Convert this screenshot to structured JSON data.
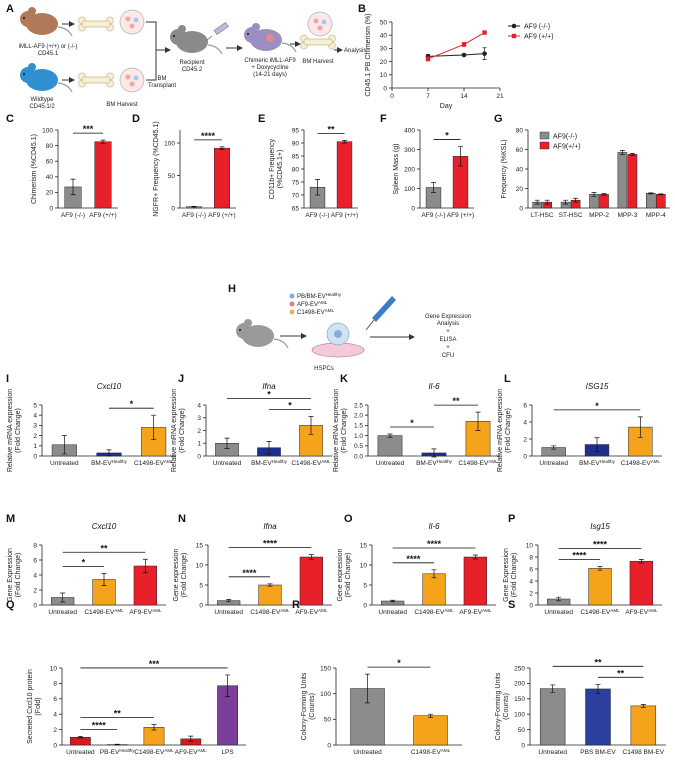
{
  "schematic_A": {
    "panel": "A",
    "donor": "iMLL-AF9 (+/+) or (-/-)",
    "donor_marker": "CD45.1",
    "wildtype": "Wildtype",
    "wildtype_marker": "CD45.1/2",
    "harvest_1": "BM Harvest",
    "transplant": [
      "BM",
      "Transplant"
    ],
    "recipient": [
      "Recipient",
      "CD45.2"
    ],
    "chimeric": [
      "Chimeric iMLL-AF9",
      "+ Doxycycline",
      "(14-21 days)"
    ],
    "harvest_2": "BM Harvest",
    "analysis": "Analysis"
  },
  "schematic_H": {
    "panel": "H",
    "ev_sources": [
      {
        "name": "PB/BM-EV",
        "sup": "Healthy"
      },
      {
        "name": "AF9-EV",
        "sup": "AML"
      },
      {
        "name": "C1498-EV",
        "sup": "AML"
      }
    ],
    "cells": "HSPCs",
    "readouts": [
      "Gene Expression",
      "Analysis",
      "+",
      "ELISA",
      "+",
      "CFU"
    ]
  },
  "chart_data": [
    {
      "panel": "B",
      "type": "line",
      "xlabel": "Day",
      "ylabel": "CD45.1 PB Chimerism (%)",
      "xlim": [
        0,
        21
      ],
      "xticks": [
        0,
        7,
        14,
        21
      ],
      "ylim": [
        0,
        50
      ],
      "yticks": [
        0,
        10,
        20,
        30,
        40,
        50
      ],
      "series": [
        {
          "name": "AF9 (-/-)",
          "color": "#222222",
          "marker": "circle",
          "x": [
            7,
            14,
            18
          ],
          "values": [
            24,
            25,
            26
          ],
          "errors": [
            1.5,
            0.8,
            4.5
          ]
        },
        {
          "name": "AF9 (+/+)",
          "color": "#e8202a",
          "marker": "square",
          "x": [
            7,
            14,
            18
          ],
          "values": [
            22,
            33,
            42
          ],
          "errors": [
            1.5,
            1.5,
            1
          ]
        }
      ]
    },
    {
      "panel": "C",
      "type": "bar",
      "ylabel": "Chimerism (%CD45.1)",
      "categories": [
        "AF9 (-/-)",
        "AF9 (+/+)"
      ],
      "values": [
        27,
        85
      ],
      "errors": [
        10,
        2
      ],
      "colors": [
        "#8c8c8c",
        "#e8202a"
      ],
      "ylim": [
        0,
        100
      ],
      "yticks": [
        0,
        20,
        40,
        60,
        80,
        100
      ],
      "significance": [
        {
          "label": "***",
          "between": [
            "AF9 (-/-)",
            "AF9 (+/+)"
          ]
        }
      ]
    },
    {
      "panel": "D",
      "type": "bar",
      "ylabel": "NGFR+ Frequency (%CD45.1)",
      "categories": [
        "AF9 (-/-)",
        "AF9 (+/+)"
      ],
      "values": [
        2,
        92
      ],
      "errors": [
        0.5,
        2
      ],
      "colors": [
        "#8c8c8c",
        "#e8202a"
      ],
      "ylim": [
        0,
        120
      ],
      "yticks": [
        0,
        50,
        100
      ],
      "significance": [
        {
          "label": "****",
          "between": [
            "AF9 (-/-)",
            "AF9 (+/+)"
          ]
        }
      ]
    },
    {
      "panel": "E",
      "type": "bar",
      "ylabel": [
        "CD11b+ Frequency",
        "(%CD45.1+)"
      ],
      "categories": [
        "AF9 (-/-)",
        "AF9 (+/+)"
      ],
      "values": [
        73,
        90.5
      ],
      "errors": [
        3,
        0.5
      ],
      "colors": [
        "#8c8c8c",
        "#e8202a"
      ],
      "ylim": [
        65,
        95
      ],
      "yticks": [
        65,
        70,
        75,
        80,
        85,
        90,
        95
      ],
      "significance": [
        {
          "label": "**",
          "between": [
            "AF9 (-/-)",
            "AF9 (+/+)"
          ]
        }
      ]
    },
    {
      "panel": "F",
      "type": "bar",
      "ylabel": "Spleen Mass (g)",
      "categories": [
        "AF9 (-/-)",
        "AF9 (+/+)"
      ],
      "values": [
        105,
        265
      ],
      "errors": [
        25,
        50
      ],
      "colors": [
        "#8c8c8c",
        "#e8202a"
      ],
      "ylim": [
        0,
        400
      ],
      "yticks": [
        0,
        100,
        200,
        300,
        400
      ],
      "significance": [
        {
          "label": "*",
          "between": [
            "AF9 (-/-)",
            "AF9 (+/+)"
          ]
        }
      ]
    },
    {
      "panel": "G",
      "type": "grouped_bar",
      "ylabel": "Frequency (%KSL)",
      "categories": [
        "LT-HSC",
        "ST-HSC",
        "MPP-2",
        "MPP-3",
        "MPP-4"
      ],
      "ylim": [
        0,
        80
      ],
      "yticks": [
        0,
        20,
        40,
        60,
        80
      ],
      "series": [
        {
          "name": "AF9(-/-)",
          "color": "#8c8c8c",
          "values": [
            6,
            6,
            14,
            57,
            15
          ],
          "errors": [
            2,
            2,
            2,
            2,
            0.5
          ]
        },
        {
          "name": "AF9(+/+)",
          "color": "#e8202a",
          "values": [
            6,
            8,
            14,
            55,
            14
          ],
          "errors": [
            2,
            2,
            1,
            1,
            0.5
          ]
        }
      ]
    },
    {
      "panel": "I",
      "type": "bar",
      "title": "Cxcl10",
      "ylabel": [
        "Relative mRNA expression",
        "(Fold Change)"
      ],
      "categories": [
        "Untreated",
        "BM-EV",
        "C1498-EV"
      ],
      "category_superscripts": [
        null,
        "Healthy",
        "AML"
      ],
      "values": [
        1.1,
        0.3,
        2.8
      ],
      "errors": [
        0.9,
        0.3,
        1.2
      ],
      "colors": [
        "#8c8c8c",
        "#1f2f8f",
        "#f5a31a"
      ],
      "ylim": [
        0,
        5
      ],
      "yticks": [
        0,
        1,
        2,
        3,
        4,
        5
      ],
      "significance": [
        {
          "label": "*",
          "between": [
            "BM-EV",
            "C1498-EV"
          ]
        }
      ]
    },
    {
      "panel": "J",
      "type": "bar",
      "title": "Ifna",
      "ylabel": [
        "Relative mRNA expression",
        "(Fold Change)"
      ],
      "categories": [
        "Untreated",
        "BM-EV",
        "C1498-EV"
      ],
      "category_superscripts": [
        null,
        "Healthy",
        "AML"
      ],
      "values": [
        1.0,
        0.65,
        2.4
      ],
      "errors": [
        0.4,
        0.5,
        0.7
      ],
      "colors": [
        "#8c8c8c",
        "#1f2f8f",
        "#f5a31a"
      ],
      "ylim": [
        0,
        4
      ],
      "yticks": [
        0,
        1,
        2,
        3,
        4
      ],
      "significance": [
        {
          "label": "*",
          "between": [
            "BM-EV",
            "C1498-EV"
          ]
        },
        {
          "label": "*",
          "between": [
            "Untreated",
            "C1498-EV"
          ]
        }
      ]
    },
    {
      "panel": "K",
      "type": "bar",
      "title": "Il-6",
      "ylabel": [
        "Relative mRNA expression",
        "(Fold Change)"
      ],
      "categories": [
        "Untreated",
        "BM-EV",
        "C1498-EV"
      ],
      "category_superscripts": [
        null,
        "Healthy",
        "AML"
      ],
      "values": [
        1.0,
        0.15,
        1.7
      ],
      "errors": [
        0.08,
        0.2,
        0.45
      ],
      "colors": [
        "#8c8c8c",
        "#1f2f8f",
        "#f5a31a"
      ],
      "ylim": [
        0,
        2.5
      ],
      "yticks": [
        {
          "value": 0,
          "label": "0.0"
        },
        0.5,
        {
          "value": 1,
          "label": "1.0"
        },
        1.5,
        {
          "value": 2,
          "label": "2.0"
        },
        2.5
      ],
      "significance": [
        {
          "label": "*",
          "between": [
            "Untreated",
            "BM-EV"
          ]
        },
        {
          "label": "**",
          "between": [
            "BM-EV",
            "C1498-EV"
          ]
        }
      ]
    },
    {
      "panel": "L",
      "type": "bar",
      "title": "ISG15",
      "ylabel": [
        "Relative mRNA expression",
        "(Fold Change)"
      ],
      "categories": [
        "Untreated",
        "BM-EV",
        "C1498-EV"
      ],
      "category_superscripts": [
        null,
        "Healthy",
        "AML"
      ],
      "values": [
        1.0,
        1.35,
        3.4
      ],
      "errors": [
        0.2,
        0.8,
        1.2
      ],
      "colors": [
        "#8c8c8c",
        "#1f2f8f",
        "#f5a31a"
      ],
      "ylim": [
        0,
        6
      ],
      "yticks": [
        0,
        2,
        4,
        6
      ],
      "significance": [
        {
          "label": "*",
          "between": [
            "Untreated",
            "C1498-EV"
          ]
        }
      ]
    },
    {
      "panel": "M",
      "type": "bar",
      "title": "Cxcl10",
      "ylabel": [
        "Gene Expression",
        "(Fold Change)"
      ],
      "categories": [
        "Untreated",
        "C1498-EV",
        "AF9-EV"
      ],
      "category_superscripts": [
        null,
        "AML",
        "AML"
      ],
      "values": [
        1.0,
        3.4,
        5.2
      ],
      "errors": [
        0.6,
        0.8,
        0.9
      ],
      "colors": [
        "#8c8c8c",
        "#f5a31a",
        "#e8202a"
      ],
      "ylim": [
        0,
        8
      ],
      "yticks": [
        0,
        2,
        4,
        6,
        8
      ],
      "significance": [
        {
          "label": "*",
          "between": [
            "Untreated",
            "C1498-EV"
          ]
        },
        {
          "label": "**",
          "between": [
            "Untreated",
            "AF9-EV"
          ]
        }
      ]
    },
    {
      "panel": "N",
      "type": "bar",
      "title": "Ifna",
      "ylabel": [
        "Gene expression",
        "(Fold Change)"
      ],
      "categories": [
        "Untreated",
        "C1498-EV",
        "AF9-EV"
      ],
      "category_superscripts": [
        null,
        "AML",
        "AML"
      ],
      "values": [
        1.1,
        5.0,
        12.0
      ],
      "errors": [
        0.3,
        0.3,
        0.6
      ],
      "colors": [
        "#8c8c8c",
        "#f5a31a",
        "#e8202a"
      ],
      "ylim": [
        0,
        15
      ],
      "yticks": [
        0,
        5,
        10,
        15
      ],
      "significance": [
        {
          "label": "****",
          "between": [
            "Untreated",
            "C1498-EV"
          ]
        },
        {
          "label": "****",
          "between": [
            "Untreated",
            "AF9-EV"
          ]
        }
      ]
    },
    {
      "panel": "O",
      "type": "bar",
      "title": "Il-6",
      "ylabel": [
        "Gene expression",
        "(Fold Change)"
      ],
      "categories": [
        "Untreated",
        "C1498-EV",
        "AF9-EV"
      ],
      "category_superscripts": [
        null,
        "AML",
        "AML"
      ],
      "values": [
        1.0,
        7.8,
        12.0
      ],
      "errors": [
        0.2,
        1.0,
        0.5
      ],
      "colors": [
        "#8c8c8c",
        "#f5a31a",
        "#e8202a"
      ],
      "ylim": [
        0,
        15
      ],
      "yticks": [
        0,
        5,
        10,
        15
      ],
      "significance": [
        {
          "label": "****",
          "between": [
            "Untreated",
            "C1498-EV"
          ]
        },
        {
          "label": "****",
          "between": [
            "Untreated",
            "AF9-EV"
          ]
        }
      ]
    },
    {
      "panel": "P",
      "type": "bar",
      "title": "Isg15",
      "ylabel": [
        "Gene Expression",
        "(Fold Change)"
      ],
      "categories": [
        "Untreated",
        "C1498-EV",
        "AF9-EV"
      ],
      "category_superscripts": [
        null,
        "AML",
        "AML"
      ],
      "values": [
        1.0,
        6.1,
        7.3
      ],
      "errors": [
        0.3,
        0.3,
        0.3
      ],
      "colors": [
        "#8c8c8c",
        "#f5a31a",
        "#e8202a"
      ],
      "ylim": [
        0,
        10
      ],
      "yticks": [
        0,
        2,
        4,
        6,
        8,
        10
      ],
      "significance": [
        {
          "label": "****",
          "between": [
            "Untreated",
            "C1498-EV"
          ]
        },
        {
          "label": "****",
          "between": [
            "Untreated",
            "AF9-EV"
          ]
        }
      ]
    },
    {
      "panel": "Q",
      "type": "bar",
      "ylabel": [
        "Secreted Cxcl10 protein",
        "(Fold)"
      ],
      "categories": [
        "Untreated",
        "PB-EV",
        "C1498-EV",
        "AF9-EV",
        "LPS"
      ],
      "category_superscripts": [
        null,
        "Healthy",
        "AML",
        "AML",
        null
      ],
      "values": [
        1.0,
        0.05,
        2.3,
        0.8,
        7.7
      ],
      "errors": [
        0.1,
        0.05,
        0.35,
        0.35,
        1.4
      ],
      "colors": [
        "#d7191c",
        "#1f2f8f",
        "#f5a31a",
        "#d7191c",
        "#7b3f99"
      ],
      "ylim": [
        0,
        10
      ],
      "yticks": [
        0,
        2,
        4,
        6,
        8,
        10
      ],
      "significance": [
        {
          "label": "****",
          "between": [
            "Untreated",
            "PB-EV"
          ]
        },
        {
          "label": "**",
          "between": [
            "Untreated",
            "C1498-EV"
          ]
        },
        {
          "label": "***",
          "between": [
            "Untreated",
            "LPS"
          ]
        }
      ]
    },
    {
      "panel": "R",
      "type": "bar",
      "ylabel": [
        "Colony-Forming Units",
        "(Counts)"
      ],
      "categories": [
        "Untreated",
        "C1498-EV"
      ],
      "category_superscripts": [
        null,
        "AML"
      ],
      "values": [
        110,
        57
      ],
      "errors": [
        28,
        3
      ],
      "colors": [
        "#8c8c8c",
        "#f5a31a"
      ],
      "ylim": [
        0,
        150
      ],
      "yticks": [
        0,
        50,
        100,
        150
      ],
      "significance": [
        {
          "label": "*",
          "between": [
            "Untreated",
            "C1498-EV"
          ]
        }
      ]
    },
    {
      "panel": "S",
      "type": "bar",
      "ylabel": [
        "Colony-Forming Units",
        "(Counts)"
      ],
      "categories": [
        "Untreated",
        "PBS BM-EV",
        "C1498 BM-EV"
      ],
      "values": [
        183,
        182,
        127
      ],
      "errors": [
        12,
        15,
        5
      ],
      "colors": [
        "#8c8c8c",
        "#2a3f9e",
        "#f5a31a"
      ],
      "ylim": [
        0,
        250
      ],
      "yticks": [
        0,
        50,
        100,
        150,
        200,
        250
      ],
      "significance": [
        {
          "label": "**",
          "between": [
            "PBS BM-EV",
            "C1498 BM-EV"
          ]
        },
        {
          "label": "**",
          "between": [
            "Untreated",
            "C1498 BM-EV"
          ]
        }
      ]
    }
  ]
}
